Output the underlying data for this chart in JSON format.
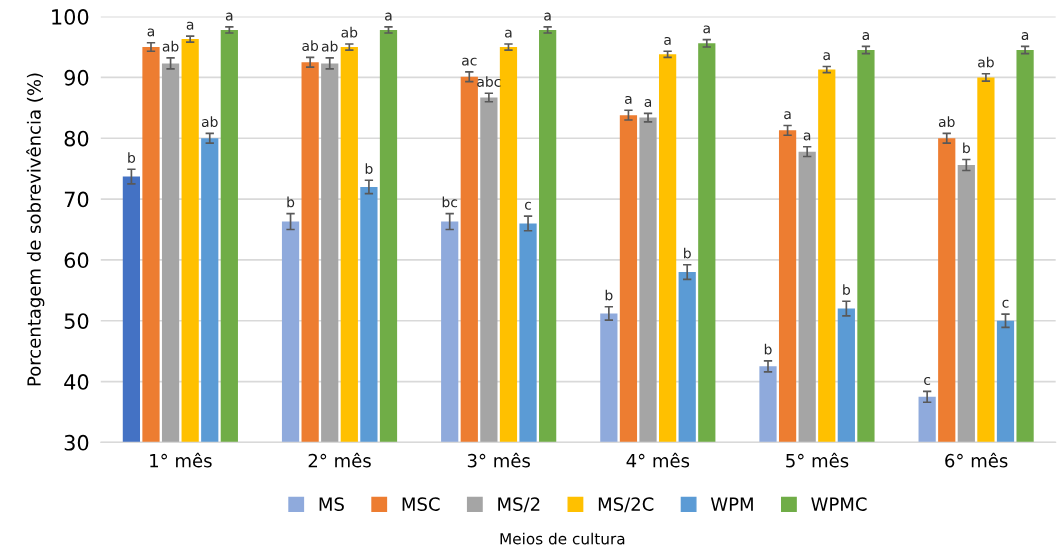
{
  "chart_data": {
    "type": "bar",
    "categories": [
      "1° mês",
      "2° mês",
      "3° mês",
      "4° mês",
      "5° mês",
      "6° mês"
    ],
    "xlabel": "Meios de cultura",
    "ylabel": "Porcentagem de sobrevivência (%)",
    "ylim": [
      30,
      100
    ],
    "yticks": [
      30,
      40,
      50,
      60,
      70,
      80,
      90,
      100
    ],
    "grid": "y",
    "legend": "bottom",
    "series": [
      {
        "name": "MS",
        "color": "#8faadc",
        "colors": [
          "#4472c4",
          "#8faadc",
          "#8faadc",
          "#8faadc",
          "#8faadc",
          "#8faadc"
        ],
        "values": [
          73.7,
          66.3,
          66.3,
          51.2,
          42.5,
          37.5
        ],
        "errors": [
          1.2,
          1.3,
          1.3,
          1.1,
          0.9,
          0.9
        ],
        "value_labels": [
          "b",
          "b",
          "bc",
          "b",
          "b",
          "c"
        ]
      },
      {
        "name": "MSC",
        "color": "#ed7d31",
        "values": [
          95.0,
          92.5,
          90.1,
          83.8,
          81.3,
          80.0
        ],
        "errors": [
          0.7,
          0.8,
          0.8,
          0.8,
          0.8,
          0.8
        ],
        "value_labels": [
          "a",
          "ab",
          "ac",
          "a",
          "a",
          "ab"
        ]
      },
      {
        "name": "MS/2",
        "color": "#a5a5a5",
        "values": [
          92.3,
          92.3,
          86.7,
          83.4,
          77.8,
          75.6
        ],
        "errors": [
          0.9,
          0.9,
          0.7,
          0.7,
          0.8,
          0.9
        ],
        "value_labels": [
          "ab",
          "ab",
          "abc",
          "a",
          "a",
          "b"
        ]
      },
      {
        "name": "MS/2C",
        "color": "#ffc000",
        "values": [
          96.3,
          95.0,
          95.0,
          93.8,
          91.3,
          90.0
        ],
        "errors": [
          0.5,
          0.5,
          0.5,
          0.5,
          0.5,
          0.6
        ],
        "value_labels": [
          "a",
          "ab",
          "a",
          "a",
          "a",
          "ab"
        ]
      },
      {
        "name": "WPM",
        "color": "#5b9bd5",
        "values": [
          80.0,
          72.0,
          66.0,
          58.0,
          52.0,
          50.0
        ],
        "errors": [
          0.8,
          1.1,
          1.2,
          1.2,
          1.2,
          1.1
        ],
        "value_labels": [
          "ab",
          "b",
          "c",
          "b",
          "b",
          "c"
        ]
      },
      {
        "name": "WPMC",
        "color": "#70ad47",
        "values": [
          97.8,
          97.8,
          97.8,
          95.6,
          94.5,
          94.5
        ],
        "errors": [
          0.5,
          0.5,
          0.5,
          0.6,
          0.6,
          0.6
        ],
        "value_labels": [
          "a",
          "a",
          "a",
          "a",
          "a",
          "a"
        ]
      }
    ]
  }
}
